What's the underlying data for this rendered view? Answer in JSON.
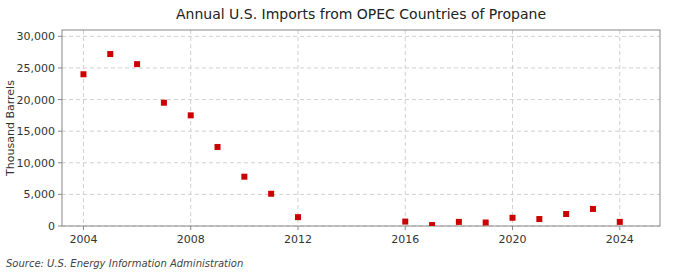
{
  "chart_data": {
    "type": "scatter",
    "title": "Annual U.S. Imports from OPEC Countries of Propane",
    "ylabel": "Thousand Barrels",
    "source": "Source: U.S. Energy Information Administration",
    "x": [
      2004,
      2005,
      2006,
      2007,
      2008,
      2009,
      2010,
      2011,
      2012,
      2016,
      2017,
      2018,
      2019,
      2020,
      2021,
      2022,
      2023,
      2024
    ],
    "values": [
      24000,
      27200,
      25600,
      19500,
      17500,
      12500,
      7800,
      5100,
      1400,
      700,
      150,
      650,
      550,
      1300,
      1100,
      1900,
      2700,
      650
    ],
    "color": "#cc0000",
    "marker": "square",
    "xlim": [
      2003.2,
      2025.5
    ],
    "ylim": [
      0,
      31000
    ],
    "xticks": [
      2004,
      2008,
      2012,
      2016,
      2020,
      2024
    ],
    "yticks": [
      0,
      {
        "value": 5000,
        "label": "5,000"
      },
      {
        "value": 10000,
        "label": "10,000"
      },
      {
        "value": 15000,
        "label": "15,000"
      },
      {
        "value": 20000,
        "label": "20,000"
      },
      {
        "value": 25000,
        "label": "25,000"
      },
      {
        "value": 30000,
        "label": "30,000"
      }
    ],
    "grid": true
  }
}
